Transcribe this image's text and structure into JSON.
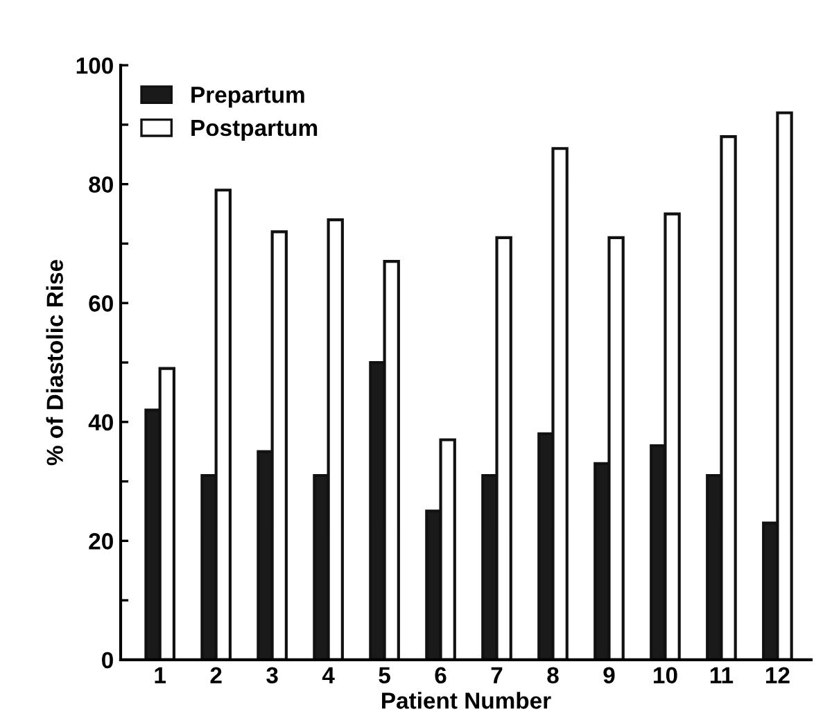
{
  "chart_data": {
    "type": "bar",
    "xlabel": "Patient Number",
    "ylabel": "% of Diastolic Rise",
    "categories": [
      "1",
      "2",
      "3",
      "4",
      "5",
      "6",
      "7",
      "8",
      "9",
      "10",
      "11",
      "12"
    ],
    "series": [
      {
        "name": "Prepartum",
        "color": "#1a1a1a",
        "values": [
          42,
          31,
          35,
          31,
          50,
          25,
          31,
          38,
          33,
          36,
          31,
          23
        ]
      },
      {
        "name": "Postpartum",
        "color": "#ffffff",
        "values": [
          49,
          79,
          72,
          74,
          67,
          37,
          71,
          86,
          71,
          75,
          88,
          92
        ]
      }
    ],
    "ylim": [
      0,
      100
    ],
    "yticks": [
      0,
      {
        "value": 10,
        "label": null
      },
      20,
      {
        "value": 30,
        "label": null
      },
      40,
      {
        "value": 50,
        "label": null
      },
      60,
      {
        "value": 70,
        "label": null
      },
      80,
      {
        "value": 90,
        "label": null
      },
      100
    ],
    "grid": false,
    "legend": "top left"
  }
}
